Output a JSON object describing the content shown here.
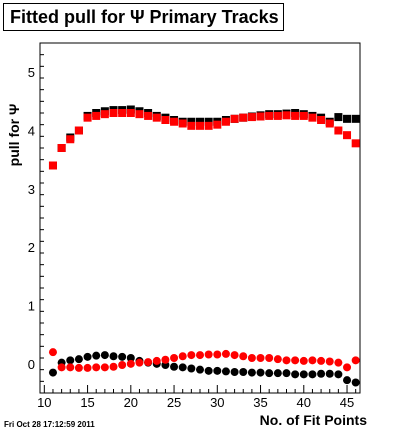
{
  "chart_data": {
    "type": "scatter",
    "title": "Fitted pull for Ψ  Primary Tracks",
    "xlabel": "No. of Fit Points",
    "ylabel": "pull for Ψ",
    "xlim": [
      9.5,
      46.5
    ],
    "ylim": [
      -0.5,
      5.5
    ],
    "x_ticks": [
      10,
      15,
      20,
      25,
      30,
      35,
      40,
      45
    ],
    "y_ticks": [
      0,
      1,
      2,
      3,
      4,
      5
    ],
    "grid": false,
    "legend": "none",
    "series": [
      {
        "color": "#000000",
        "marker": "square",
        "x": [
          11,
          12,
          13,
          14,
          15,
          16,
          17,
          18,
          19,
          20,
          21,
          22,
          23,
          24,
          25,
          26,
          27,
          28,
          29,
          30,
          31,
          32,
          33,
          34,
          35,
          36,
          37,
          38,
          39,
          40,
          41,
          42,
          43,
          44,
          45,
          46
        ],
        "values": [
          3.4,
          3.7,
          3.88,
          4.0,
          4.25,
          4.3,
          4.33,
          4.35,
          4.35,
          4.36,
          4.33,
          4.3,
          4.25,
          4.22,
          4.18,
          4.15,
          4.15,
          4.15,
          4.15,
          4.15,
          4.18,
          4.2,
          4.22,
          4.24,
          4.26,
          4.28,
          4.28,
          4.29,
          4.3,
          4.28,
          4.25,
          4.22,
          4.15,
          4.23,
          4.2,
          4.2
        ]
      },
      {
        "color": "#ff0000",
        "marker": "square",
        "x": [
          11,
          12,
          13,
          14,
          15,
          16,
          17,
          18,
          19,
          20,
          21,
          22,
          23,
          24,
          25,
          26,
          27,
          28,
          29,
          30,
          31,
          32,
          33,
          34,
          35,
          36,
          37,
          38,
          39,
          40,
          41,
          42,
          43,
          44,
          45,
          46
        ],
        "values": [
          3.4,
          3.7,
          3.85,
          4.0,
          4.22,
          4.25,
          4.28,
          4.3,
          4.3,
          4.3,
          4.28,
          4.25,
          4.22,
          4.18,
          4.15,
          4.12,
          4.08,
          4.08,
          4.08,
          4.1,
          4.15,
          4.2,
          4.22,
          4.23,
          4.24,
          4.25,
          4.25,
          4.26,
          4.25,
          4.25,
          4.22,
          4.18,
          4.12,
          4.0,
          3.92,
          3.78
        ]
      },
      {
        "color": "#000000",
        "marker": "circle",
        "x": [
          11,
          12,
          13,
          14,
          15,
          16,
          17,
          18,
          19,
          20,
          21,
          22,
          23,
          24,
          25,
          26,
          27,
          28,
          29,
          30,
          31,
          32,
          33,
          34,
          35,
          36,
          37,
          38,
          39,
          40,
          41,
          42,
          43,
          44,
          45,
          46
        ],
        "values": [
          -0.15,
          0.02,
          0.06,
          0.08,
          0.12,
          0.14,
          0.15,
          0.13,
          0.12,
          0.1,
          0.05,
          0.02,
          0.0,
          -0.02,
          -0.05,
          -0.06,
          -0.08,
          -0.1,
          -0.12,
          -0.12,
          -0.13,
          -0.14,
          -0.14,
          -0.15,
          -0.15,
          -0.16,
          -0.16,
          -0.16,
          -0.18,
          -0.18,
          -0.18,
          -0.17,
          -0.17,
          -0.18,
          -0.28,
          -0.32
        ]
      },
      {
        "color": "#ff0000",
        "marker": "circle",
        "x": [
          11,
          12,
          13,
          14,
          15,
          16,
          17,
          18,
          19,
          20,
          21,
          22,
          23,
          24,
          25,
          26,
          27,
          28,
          29,
          30,
          31,
          32,
          33,
          34,
          35,
          36,
          37,
          38,
          39,
          40,
          41,
          42,
          43,
          44,
          45,
          46
        ],
        "values": [
          0.2,
          -0.06,
          -0.06,
          -0.07,
          -0.07,
          -0.06,
          -0.06,
          -0.05,
          -0.02,
          0.0,
          0.02,
          0.03,
          0.05,
          0.07,
          0.1,
          0.13,
          0.15,
          0.15,
          0.16,
          0.16,
          0.17,
          0.15,
          0.13,
          0.1,
          0.1,
          0.1,
          0.08,
          0.06,
          0.06,
          0.05,
          0.06,
          0.05,
          0.04,
          0.02,
          -0.06,
          0.06
        ]
      }
    ]
  },
  "footer": {
    "timestamp": "Fri Oct 28 17:12:59 2011"
  }
}
